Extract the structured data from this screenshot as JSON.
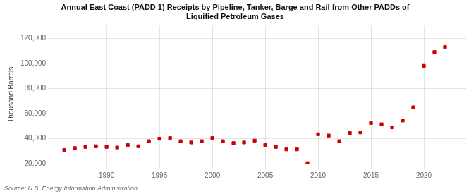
{
  "chart_data": {
    "type": "scatter",
    "title": "Annual East Coast (PADD 1) Receipts by Pipeline, Tanker, Barge and Rail from Other PADDs of\nLiquified Petroleum Gases",
    "ylabel": "Thousand Barrels",
    "source": "Source: U.S. Energy Information Administration",
    "x": [
      1986,
      1987,
      1988,
      1989,
      1990,
      1991,
      1992,
      1993,
      1994,
      1995,
      1996,
      1997,
      1998,
      1999,
      2000,
      2001,
      2002,
      2003,
      2004,
      2005,
      2006,
      2007,
      2008,
      2009,
      2010,
      2011,
      2012,
      2013,
      2014,
      2015,
      2016,
      2017,
      2018,
      2019,
      2020,
      2021,
      2022
    ],
    "values": [
      31000,
      32500,
      33500,
      34000,
      33500,
      33000,
      35000,
      34000,
      38000,
      40000,
      40500,
      38000,
      37000,
      38000,
      40500,
      38000,
      36500,
      37000,
      38500,
      35000,
      33500,
      31500,
      31500,
      20500,
      43500,
      42500,
      38000,
      44500,
      45000,
      52500,
      51500,
      49000,
      54500,
      65000,
      98000,
      109000,
      113000
    ],
    "color": "#cc0000",
    "marker": "square",
    "xlim": [
      1985,
      2024
    ],
    "xticks": [
      1990,
      1995,
      2000,
      2005,
      2010,
      2015,
      2020
    ],
    "ylim": [
      20000,
      130000
    ],
    "yticks": [
      {
        "value": 20000,
        "label": "20,000"
      },
      {
        "value": 40000,
        "label": "40,000"
      },
      {
        "value": 60000,
        "label": "60,000"
      },
      {
        "value": 80000,
        "label": "80,000"
      },
      {
        "value": 100000,
        "label": "100,000"
      },
      {
        "value": 120000,
        "label": "120,000"
      }
    ],
    "grid": true
  }
}
